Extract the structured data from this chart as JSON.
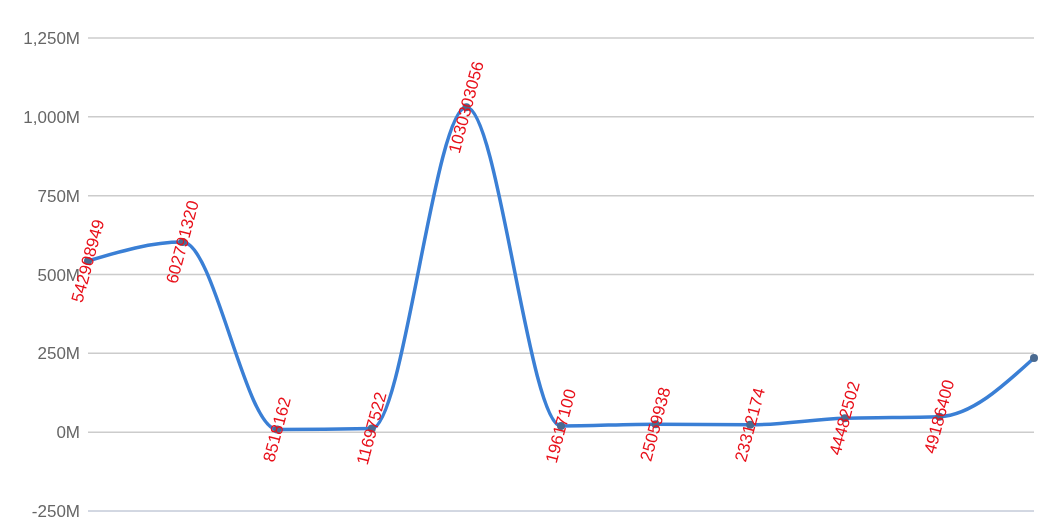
{
  "chart_data": {
    "type": "line",
    "categories": [
      null,
      null,
      null,
      null,
      null,
      null,
      null,
      null,
      null,
      null,
      null
    ],
    "values": [
      542908949,
      602791320,
      8518162,
      11697522,
      1030303056,
      19617100,
      25059938,
      23312174,
      44482502,
      49186400,
      235000000
    ],
    "value_labels": [
      "542908949",
      "602791320",
      "8518162",
      "11697522",
      "1030303056",
      "19617100",
      "25059938",
      "23312174",
      "44482502",
      "49186400",
      null
    ],
    "color": "#3a7fd5",
    "marker": "circle",
    "grid": "y",
    "tick_labels": "y",
    "ylim": [
      -250000000,
      1250000000
    ],
    "yticks": [
      {
        "value": -250000000,
        "label": "-250M"
      },
      {
        "value": 0,
        "label": "0M"
      },
      {
        "value": 250000000,
        "label": "250M"
      },
      {
        "value": 500000000,
        "label": "500M"
      },
      {
        "value": 750000000,
        "label": "750M"
      },
      {
        "value": 1000000000,
        "label": "1,000M"
      },
      {
        "value": 1250000000,
        "label": "1,250M"
      }
    ]
  }
}
